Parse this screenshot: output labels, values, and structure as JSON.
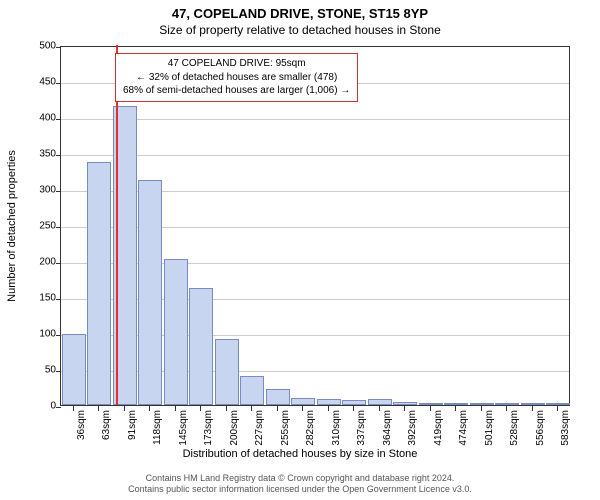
{
  "title_main": "47, COPELAND DRIVE, STONE, ST15 8YP",
  "title_sub": "Size of property relative to detached houses in Stone",
  "ylabel": "Number of detached properties",
  "xlabel": "Distribution of detached houses by size in Stone",
  "chart": {
    "type": "bar",
    "ylim": [
      0,
      500
    ],
    "ytick_step": 50,
    "x_categories": [
      "36sqm",
      "63sqm",
      "91sqm",
      "118sqm",
      "145sqm",
      "173sqm",
      "200sqm",
      "227sqm",
      "255sqm",
      "282sqm",
      "310sqm",
      "337sqm",
      "364sqm",
      "392sqm",
      "419sqm",
      "474sqm",
      "501sqm",
      "528sqm",
      "556sqm",
      "583sqm"
    ],
    "values": [
      98,
      338,
      415,
      313,
      203,
      163,
      92,
      40,
      22,
      10,
      9,
      7,
      8,
      4,
      2,
      1,
      1,
      1,
      1,
      1
    ],
    "bar_fill": "#c7d5f0",
    "bar_border": "#7a8bbd",
    "grid_color": "#cccccc",
    "background_color": "#ffffff",
    "axis_color": "#333333",
    "reference_line": {
      "position_index": 2.15,
      "color": "#e03030"
    }
  },
  "callout": {
    "border_color": "#cc3333",
    "line1": "47 COPELAND DRIVE: 95sqm",
    "line2": "← 32% of detached houses are smaller (478)",
    "line3": "68% of semi-detached houses are larger (1,006) →"
  },
  "footer": {
    "line1": "Contains HM Land Registry data © Crown copyright and database right 2024.",
    "line2": "Contains public sector information licensed under the Open Government Licence v3.0."
  }
}
